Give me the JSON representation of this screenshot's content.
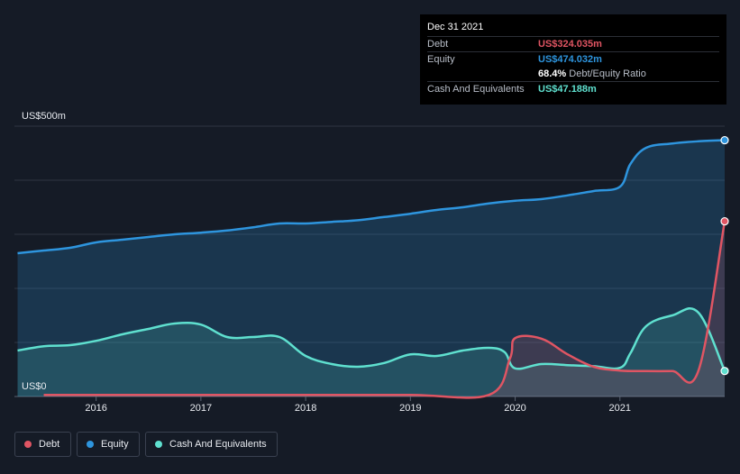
{
  "chart_data": {
    "type": "area",
    "xlabel": "",
    "ylabel": "",
    "y_labels": {
      "top": "US$500m",
      "bottom": "US$0"
    },
    "ylim": [
      0,
      500
    ],
    "x_ticks": [
      "2016",
      "2017",
      "2018",
      "2019",
      "2020",
      "2021"
    ],
    "x_tick_values": [
      2016,
      2017,
      2018,
      2019,
      2020,
      2021
    ],
    "xlim": [
      2015.22,
      2022.0
    ],
    "grid": true,
    "legend_position": "bottom-left",
    "series": [
      {
        "name": "Debt",
        "color": "#e05563",
        "x": [
          2015.5,
          2016.0,
          2017.0,
          2018.0,
          2019.0,
          2019.75,
          2019.95,
          2020.0,
          2020.25,
          2020.5,
          2020.75,
          2021.0,
          2021.25,
          2021.5,
          2021.75,
          2022.0
        ],
        "y": [
          3,
          3,
          3,
          3,
          3,
          3,
          70,
          108,
          107,
          78,
          55,
          48,
          47,
          47,
          48,
          324.035
        ]
      },
      {
        "name": "Equity",
        "color": "#2e95de",
        "x": [
          2015.25,
          2015.5,
          2015.75,
          2016.0,
          2016.25,
          2016.5,
          2016.75,
          2017.0,
          2017.25,
          2017.5,
          2017.75,
          2018.0,
          2018.25,
          2018.5,
          2018.75,
          2019.0,
          2019.25,
          2019.5,
          2019.75,
          2020.0,
          2020.25,
          2020.5,
          2020.75,
          2021.0,
          2021.1,
          2021.25,
          2021.5,
          2021.75,
          2022.0
        ],
        "y": [
          265,
          270,
          275,
          285,
          290,
          295,
          300,
          303,
          307,
          313,
          320,
          320,
          323,
          326,
          332,
          338,
          345,
          350,
          357,
          362,
          365,
          372,
          380,
          388,
          430,
          460,
          468,
          472,
          474.032
        ]
      },
      {
        "name": "Cash And Equivalents",
        "color": "#5fe0cf",
        "x": [
          2015.25,
          2015.5,
          2015.75,
          2016.0,
          2016.25,
          2016.5,
          2016.75,
          2017.0,
          2017.25,
          2017.5,
          2017.75,
          2018.0,
          2018.25,
          2018.5,
          2018.75,
          2019.0,
          2019.25,
          2019.5,
          2019.75,
          2019.9,
          2020.0,
          2020.25,
          2020.5,
          2020.75,
          2021.0,
          2021.1,
          2021.25,
          2021.5,
          2021.75,
          2022.0
        ],
        "y": [
          85,
          93,
          95,
          103,
          115,
          125,
          135,
          133,
          110,
          110,
          110,
          75,
          60,
          55,
          62,
          78,
          75,
          85,
          90,
          82,
          52,
          60,
          58,
          56,
          53,
          80,
          130,
          150,
          155,
          47.188
        ]
      }
    ]
  },
  "tooltip": {
    "date": "Dec 31 2021",
    "rows": [
      {
        "label": "Debt",
        "value": "US$324.035m",
        "color": "#e05563"
      },
      {
        "label": "Equity",
        "value": "US$474.032m",
        "color": "#2e95de"
      },
      {
        "label": "",
        "value": "68.4%",
        "sub": "Debt/Equity Ratio",
        "color": "#ffffff"
      },
      {
        "label": "Cash And Equivalents",
        "value": "US$47.188m",
        "color": "#5fe0cf"
      }
    ]
  },
  "legend": [
    {
      "label": "Debt",
      "color": "#e05563"
    },
    {
      "label": "Equity",
      "color": "#2e95de"
    },
    {
      "label": "Cash And Equivalents",
      "color": "#5fe0cf"
    }
  ]
}
